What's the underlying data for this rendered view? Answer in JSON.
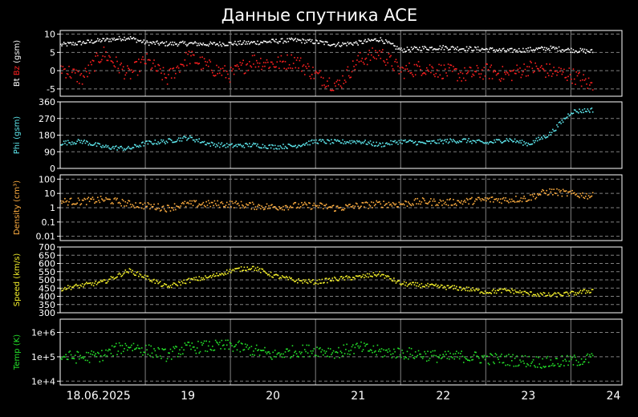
{
  "title": "Данные спутника ACE",
  "chart_data": {
    "type": "scatter",
    "title": "Данные спутника ACE",
    "x_ticks": [
      "18.06.2025",
      "19",
      "20",
      "21",
      "22",
      "23",
      "24"
    ],
    "x_range": [
      "2025-06-18",
      "2025-06-24 14:00"
    ],
    "grid": true,
    "panels": [
      {
        "id": "bz",
        "ylabel_parts": [
          {
            "text": "Bt",
            "color": "#ffffff"
          },
          {
            "text": " Bz",
            "color": "#ff2020"
          },
          {
            "text": " (gsm)",
            "color": "#ffffff"
          }
        ],
        "yticks": [
          "10",
          "5",
          "0",
          "-5"
        ],
        "ylim": [
          -7,
          11
        ],
        "scale": "linear",
        "series": [
          {
            "key": "bt",
            "color": "#ffffff",
            "x": [
              0,
              0.25,
              0.5,
              0.8,
              1,
              1.25,
              1.5,
              1.75,
              2,
              2.25,
              2.5,
              2.75,
              3,
              3.25,
              3.5,
              3.75,
              4,
              4.25,
              4.5,
              4.75,
              5,
              5.25,
              5.5,
              5.75,
              6,
              6.25
            ],
            "y": [
              7.2,
              7.8,
              8.5,
              9.2,
              7.8,
              7.5,
              7.6,
              7.4,
              7.6,
              7.8,
              8.2,
              8.5,
              8.0,
              7.3,
              7.8,
              8.8,
              5.8,
              6.3,
              6.5,
              6.2,
              6.0,
              5.6,
              5.9,
              6.3,
              5.8,
              5.4
            ]
          },
          {
            "key": "bz",
            "color": "#ff2020",
            "x": [
              0,
              0.25,
              0.5,
              0.8,
              1,
              1.25,
              1.5,
              1.75,
              2,
              2.25,
              2.5,
              2.75,
              3,
              3.25,
              3.5,
              3.75,
              4,
              4.25,
              4.5,
              4.75,
              5,
              5.25,
              5.5,
              5.75,
              6,
              6.25
            ],
            "y": [
              1,
              -2,
              5,
              -1,
              3,
              -2,
              4,
              1,
              -1,
              3,
              2,
              3,
              -1,
              -4,
              3,
              5,
              0,
              1,
              0,
              -1,
              0,
              -1,
              1,
              0,
              -1,
              -4
            ]
          }
        ]
      },
      {
        "id": "phi",
        "ylabel_parts": [
          {
            "text": "Phi (gsm)",
            "color": "#5ee8ee"
          }
        ],
        "yticks": [
          "360",
          "270",
          "180",
          "90",
          "0"
        ],
        "ylim": [
          0,
          360
        ],
        "scale": "linear",
        "series": [
          {
            "key": "phi",
            "color": "#5ee8ee",
            "x": [
              0,
              0.25,
              0.5,
              0.8,
              1,
              1.25,
              1.5,
              1.75,
              2,
              2.25,
              2.5,
              2.75,
              3,
              3.25,
              3.5,
              3.75,
              4,
              4.25,
              4.5,
              4.75,
              5,
              5.25,
              5.5,
              5.75,
              6,
              6.25
            ],
            "y": [
              140,
              150,
              120,
              110,
              140,
              150,
              170,
              135,
              125,
              130,
              120,
              125,
              150,
              145,
              150,
              130,
              150,
              140,
              150,
              155,
              140,
              160,
              135,
              190,
              310,
              320
            ]
          }
        ]
      },
      {
        "id": "density",
        "ylabel_parts": [
          {
            "text": "Density (cm³)",
            "color": "#ffae40"
          }
        ],
        "yticks": [
          "100",
          "10",
          "1",
          "0.1",
          "0.01"
        ],
        "ylim": [
          0.005,
          200
        ],
        "scale": "log",
        "series": [
          {
            "key": "density",
            "color": "#ffae40",
            "x": [
              0,
              0.25,
              0.5,
              0.8,
              1,
              1.25,
              1.5,
              1.75,
              2,
              2.25,
              2.5,
              2.75,
              3,
              3.25,
              3.5,
              3.75,
              4,
              4.25,
              4.5,
              4.75,
              5,
              5.25,
              5.5,
              5.75,
              6,
              6.25
            ],
            "y": [
              3,
              3,
              4,
              2,
              1.5,
              1,
              2,
              2,
              2,
              1.5,
              1.2,
              1.5,
              1.5,
              1,
              1.5,
              2,
              2,
              3,
              2.5,
              3,
              4,
              4,
              5,
              15,
              10,
              7
            ]
          }
        ]
      },
      {
        "id": "speed",
        "ylabel_parts": [
          {
            "text": "Speed (km/s)",
            "color": "#f4f02a"
          }
        ],
        "yticks": [
          "700",
          "650",
          "600",
          "550",
          "500",
          "450",
          "400",
          "350",
          "300"
        ],
        "ylim": [
          300,
          700
        ],
        "scale": "linear",
        "series": [
          {
            "key": "speed",
            "color": "#f4f02a",
            "x": [
              0,
              0.25,
              0.5,
              0.8,
              1,
              1.25,
              1.5,
              1.75,
              2,
              2.25,
              2.5,
              2.75,
              3,
              3.25,
              3.5,
              3.75,
              4,
              4.25,
              4.5,
              4.75,
              5,
              5.25,
              5.5,
              5.75,
              6,
              6.25
            ],
            "y": [
              450,
              470,
              490,
              560,
              520,
              460,
              500,
              520,
              560,
              580,
              530,
              500,
              490,
              510,
              520,
              540,
              480,
              470,
              460,
              450,
              430,
              440,
              420,
              410,
              420,
              440
            ]
          }
        ]
      },
      {
        "id": "temp",
        "ylabel_parts": [
          {
            "text": "Temp (K)",
            "color": "#24e22a"
          }
        ],
        "yticks": [
          "1e+6",
          "1e+5",
          "1e+4"
        ],
        "ylim": [
          7000,
          3500000
        ],
        "scale": "log",
        "series": [
          {
            "key": "temp",
            "color": "#24e22a",
            "x": [
              0,
              0.25,
              0.5,
              0.8,
              1,
              1.25,
              1.5,
              1.75,
              2,
              2.25,
              2.5,
              2.75,
              3,
              3.25,
              3.5,
              3.75,
              4,
              4.25,
              4.5,
              4.75,
              5,
              5.25,
              5.5,
              5.75,
              6,
              6.25
            ],
            "y": [
              110000,
              100000,
              120000,
              300000,
              200000,
              120000,
              250000,
              280000,
              300000,
              200000,
              120000,
              180000,
              200000,
              160000,
              250000,
              170000,
              150000,
              130000,
              100000,
              110000,
              90000,
              80000,
              70000,
              60000,
              70000,
              90000
            ]
          }
        ]
      }
    ]
  }
}
